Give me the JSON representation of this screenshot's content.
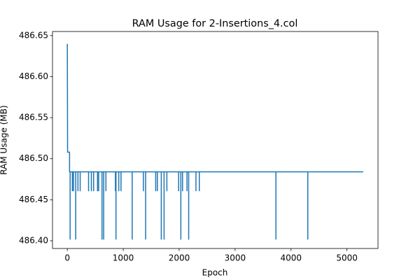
{
  "chart_data": {
    "type": "line",
    "title": "RAM Usage for 2-Insertions_4.col",
    "xlabel": "Epoch",
    "ylabel": "RAM Usage (MB)",
    "color": "#1f77b4",
    "x": [
      0,
      5,
      40,
      40,
      50,
      50,
      50,
      90,
      90,
      90,
      110,
      110,
      110,
      150,
      150,
      150,
      190,
      190,
      190,
      230,
      230,
      230,
      380,
      380,
      380,
      430,
      430,
      430,
      470,
      470,
      470,
      540,
      540,
      540,
      560,
      560,
      560,
      620,
      620,
      620,
      650,
      650,
      650,
      690,
      690,
      690,
      860,
      860,
      860,
      870,
      870,
      870,
      920,
      920,
      920,
      960,
      960,
      960,
      1160,
      1160,
      1160,
      1360,
      1360,
      1360,
      1400,
      1400,
      1400,
      1580,
      1580,
      1580,
      1610,
      1610,
      1610,
      1680,
      1680,
      1680,
      1730,
      1730,
      1730,
      1780,
      1780,
      1780,
      1990,
      1990,
      1990,
      2030,
      2030,
      2030,
      2060,
      2060,
      2060,
      2140,
      2140,
      2140,
      2170,
      2170,
      2170,
      2300,
      2300,
      2300,
      2360,
      2360,
      2360,
      3730,
      3730,
      3730,
      4300,
      4300,
      4300,
      5290
    ],
    "values": [
      486.64,
      486.508,
      486.508,
      486.484,
      486.484,
      486.402,
      486.484,
      486.484,
      486.461,
      486.484,
      486.484,
      486.461,
      486.484,
      486.484,
      486.402,
      486.484,
      486.484,
      486.461,
      486.484,
      486.484,
      486.461,
      486.484,
      486.484,
      486.461,
      486.484,
      486.484,
      486.461,
      486.484,
      486.484,
      486.461,
      486.484,
      486.484,
      486.461,
      486.484,
      486.484,
      486.461,
      486.484,
      486.484,
      486.402,
      486.484,
      486.484,
      486.402,
      486.484,
      486.484,
      486.461,
      486.484,
      486.484,
      486.461,
      486.484,
      486.484,
      486.402,
      486.484,
      486.484,
      486.461,
      486.484,
      486.484,
      486.461,
      486.484,
      486.484,
      486.402,
      486.484,
      486.484,
      486.461,
      486.484,
      486.484,
      486.402,
      486.484,
      486.484,
      486.461,
      486.484,
      486.484,
      486.461,
      486.484,
      486.484,
      486.402,
      486.484,
      486.484,
      486.402,
      486.484,
      486.484,
      486.461,
      486.484,
      486.484,
      486.461,
      486.484,
      486.484,
      486.402,
      486.484,
      486.484,
      486.461,
      486.484,
      486.484,
      486.461,
      486.484,
      486.484,
      486.402,
      486.484,
      486.484,
      486.461,
      486.484,
      486.484,
      486.461,
      486.484,
      486.484,
      486.402,
      486.484,
      486.484,
      486.402,
      486.484,
      486.484
    ],
    "xlim": [
      -265,
      5555
    ],
    "xticks": [
      0,
      1000,
      2000,
      3000,
      4000,
      5000
    ],
    "ylim": [
      486.3906,
      486.655
    ],
    "yticks": [
      {
        "value": 486.4,
        "label": "486.40"
      },
      486.45,
      {
        "value": 486.5,
        "label": "486.50"
      },
      486.55,
      {
        "value": 486.6,
        "label": "486.60"
      },
      486.65
    ]
  }
}
